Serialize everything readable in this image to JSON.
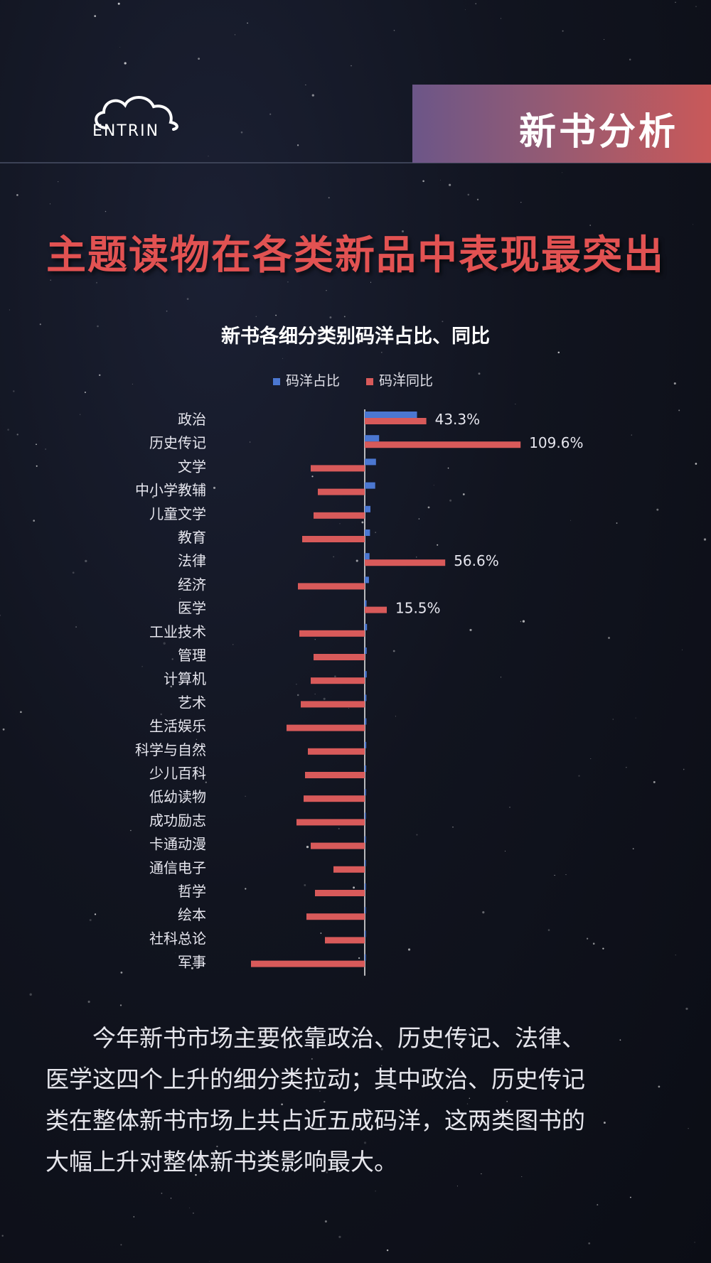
{
  "header": {
    "logo_text": "ENTRIN",
    "banner_title": "新书分析"
  },
  "headline": "主题读物在各类新品中表现最突出",
  "colors": {
    "share": "#4b77d1",
    "yoy": "#d85a5a",
    "headline": "#e25252"
  },
  "chart_data": {
    "type": "bar",
    "orientation": "horizontal",
    "title": "新书各细分类别码洋占比、同比",
    "legend_position": "top",
    "categories": [
      "政治",
      "历史传记",
      "文学",
      "中小学教辅",
      "儿童文学",
      "教育",
      "法律",
      "经济",
      "医学",
      "工业技术",
      "管理",
      "计算机",
      "艺术",
      "生活娱乐",
      "科学与自然",
      "少儿百科",
      "低幼读物",
      "成功励志",
      "卡通动漫",
      "通信电子",
      "哲学",
      "绘本",
      "社科总论",
      "军事"
    ],
    "series": [
      {
        "name": "码洋占比",
        "color": "#4b77d1",
        "values": [
          35.0,
          9.6,
          7.5,
          7.0,
          3.8,
          3.5,
          3.2,
          2.8,
          1.2,
          1.5,
          1.3,
          1.3,
          1.1,
          1.1,
          1.0,
          0.9,
          0.8,
          0.7,
          0.6,
          0.5,
          0.5,
          0.4,
          0.4,
          0.3
        ]
      },
      {
        "name": "码洋同比",
        "color": "#d85a5a",
        "values": [
          43.3,
          109.6,
          -38.0,
          -33.0,
          -36.0,
          -44.0,
          56.6,
          -47.0,
          15.5,
          -46.0,
          -36.0,
          -38.0,
          -45.0,
          -55.0,
          -40.0,
          -42.0,
          -43.0,
          -48.0,
          -38.0,
          -22.0,
          -35.0,
          -41.0,
          -28.0,
          -80.0
        ],
        "labels": [
          "43.3%",
          "109.6%",
          "",
          "",
          "",
          "",
          "56.6%",
          "",
          "15.5%",
          "",
          "",
          "",
          "",
          "",
          "",
          "",
          "",
          "",
          "",
          "",
          "",
          "",
          "",
          ""
        ]
      }
    ],
    "xlim": [
      -80,
      110
    ],
    "grid": false
  },
  "body_text": [
    "今年新书市场主要依靠政治、历史传记、法律、",
    "医学这四个上升的细分类拉动；其中政治、历史传记",
    "类在整体新书市场上共占近五成码洋，这两类图书的",
    "大幅上升对整体新书类影响最大。"
  ]
}
